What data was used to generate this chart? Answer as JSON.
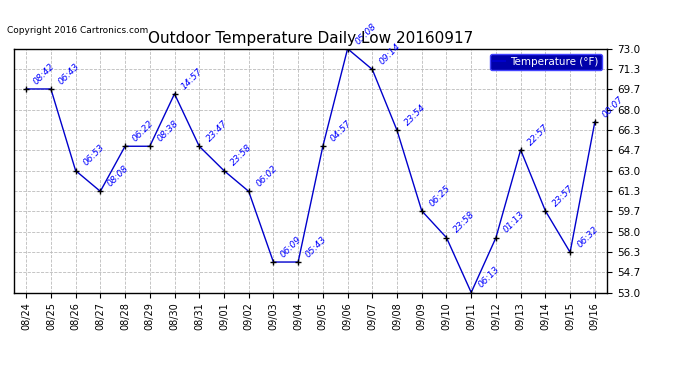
{
  "title": "Outdoor Temperature Daily Low 20160917",
  "copyright": "Copyright 2016 Cartronics.com",
  "legend_label": "Temperature (°F)",
  "x_labels": [
    "08/24",
    "08/25",
    "08/26",
    "08/27",
    "08/28",
    "08/29",
    "08/30",
    "08/31",
    "09/01",
    "09/02",
    "09/03",
    "09/04",
    "09/05",
    "09/06",
    "09/07",
    "09/08",
    "09/09",
    "09/10",
    "09/11",
    "09/12",
    "09/13",
    "09/14",
    "09/15",
    "09/16"
  ],
  "point_labels": [
    "08:42",
    "06:43",
    "06:53",
    "08:08",
    "06:22",
    "08:38",
    "14:57",
    "23:47",
    "23:58",
    "06:02",
    "06:09",
    "05:43",
    "04:57",
    "05:08",
    "09:14",
    "23:54",
    "06:25",
    "23:58",
    "06:13",
    "01:13",
    "22:57",
    "23:57",
    "06:32",
    "00:07"
  ],
  "y_values": [
    69.7,
    69.7,
    63.0,
    61.3,
    65.0,
    65.0,
    69.3,
    65.0,
    63.0,
    61.3,
    55.5,
    55.5,
    65.0,
    73.0,
    71.3,
    66.3,
    59.7,
    57.5,
    53.0,
    57.5,
    64.7,
    59.7,
    56.3,
    67.0
  ],
  "y_ticks": [
    53.0,
    54.7,
    56.3,
    58.0,
    59.7,
    61.3,
    63.0,
    64.7,
    66.3,
    68.0,
    69.7,
    71.3,
    73.0
  ],
  "y_min": 53.0,
  "y_max": 73.0,
  "line_color": "#0000cc",
  "marker_color": "#000000",
  "bg_color": "#ffffff",
  "grid_color": "#bbbbbb",
  "title_color": "#000000",
  "copyright_color": "#000000",
  "label_color": "#0000ff",
  "border_color": "#000000",
  "legend_bg": "#0000aa",
  "legend_edge": "#4444ff",
  "legend_text": "#ffffff"
}
